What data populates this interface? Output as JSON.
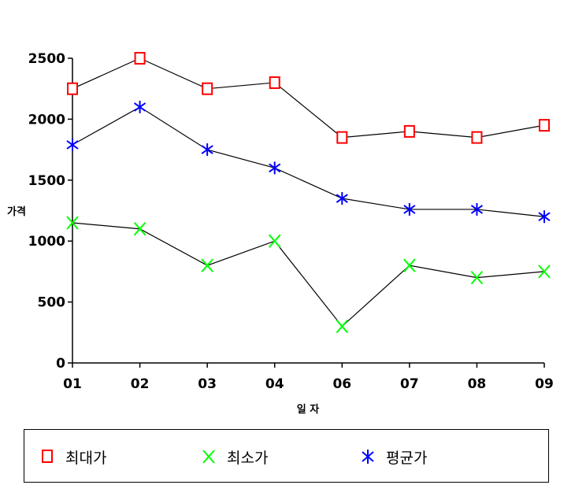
{
  "chart_data": {
    "type": "line",
    "categories": [
      "01",
      "02",
      "03",
      "04",
      "06",
      "07",
      "08",
      "09"
    ],
    "series": [
      {
        "name": "최대가",
        "values": [
          2250,
          2500,
          2250,
          2300,
          1850,
          1900,
          1850,
          1950
        ],
        "color": "#ff0000",
        "marker": "square"
      },
      {
        "name": "최소가",
        "values": [
          1150,
          1100,
          800,
          1000,
          300,
          800,
          700,
          750
        ],
        "color": "#00ff00",
        "marker": "x"
      },
      {
        "name": "평균가",
        "values": [
          1790,
          2100,
          1750,
          1600,
          1350,
          1260,
          1260,
          1200
        ],
        "color": "#0000ff",
        "marker": "star"
      }
    ],
    "xlabel": "일 자",
    "ylabel": "가격",
    "ylim": [
      0,
      2500
    ],
    "yticks": [
      0,
      500,
      1000,
      1500,
      2000,
      2500
    ],
    "grid": false,
    "legend_position": "bottom",
    "line_color": "#000000"
  }
}
